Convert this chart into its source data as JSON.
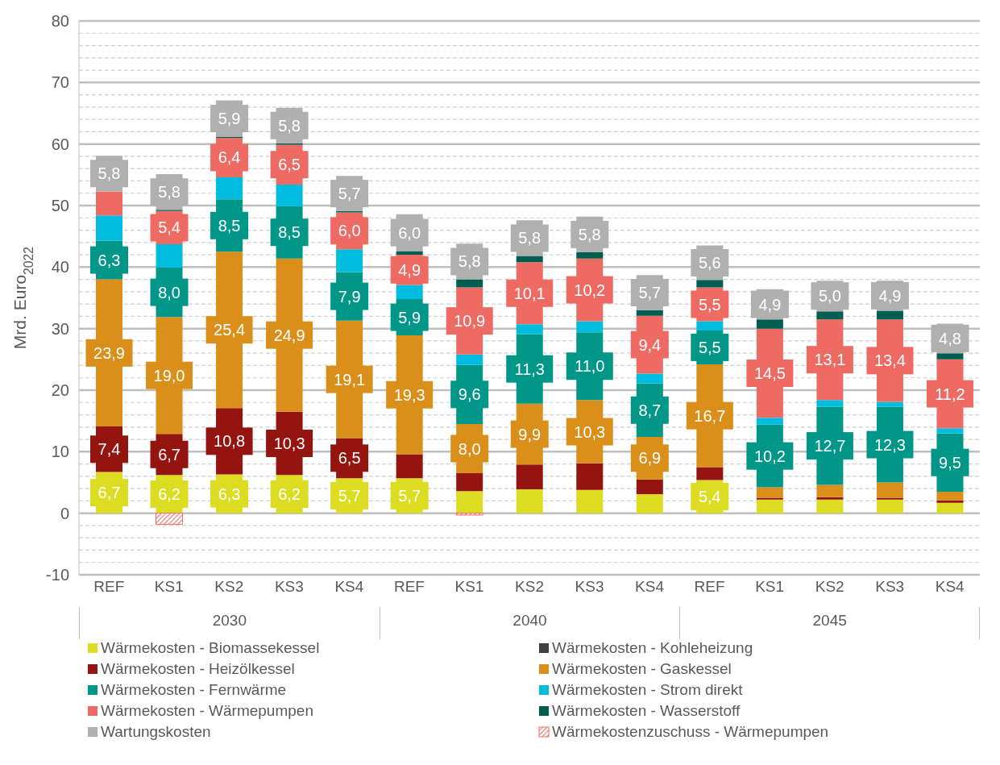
{
  "chart_data": {
    "type": "bar",
    "stacked": true,
    "ylabel": "Mrd. Euro$_{2022}$",
    "categories": [
      "REF",
      "KS1",
      "KS2",
      "KS3",
      "KS4",
      "REF",
      "KS1",
      "KS2",
      "KS3",
      "KS4",
      "REF",
      "KS1",
      "KS2",
      "KS3",
      "KS4"
    ],
    "annotations": [
      "2030",
      "2040",
      "2045"
    ],
    "ylim": [
      -10,
      80
    ],
    "yticks": [
      -10,
      {
        "value": -8,
        "label": null
      },
      {
        "value": -6,
        "label": null
      },
      {
        "value": -4,
        "label": null
      },
      {
        "value": -2,
        "label": null
      },
      0,
      {
        "value": 2,
        "label": null
      },
      {
        "value": 4,
        "label": null
      },
      {
        "value": 6,
        "label": null
      },
      {
        "value": 8,
        "label": null
      },
      10,
      {
        "value": 12,
        "label": null
      },
      {
        "value": 14,
        "label": null
      },
      {
        "value": 16,
        "label": null
      },
      {
        "value": 18,
        "label": null
      },
      20,
      {
        "value": 22,
        "label": null
      },
      {
        "value": 24,
        "label": null
      },
      {
        "value": 26,
        "label": null
      },
      {
        "value": 28,
        "label": null
      },
      30,
      {
        "value": 32,
        "label": null
      },
      {
        "value": 34,
        "label": null
      },
      {
        "value": 36,
        "label": null
      },
      {
        "value": 38,
        "label": null
      },
      40,
      {
        "value": 42,
        "label": null
      },
      {
        "value": 44,
        "label": null
      },
      {
        "value": 46,
        "label": null
      },
      {
        "value": 48,
        "label": null
      },
      50,
      {
        "value": 52,
        "label": null
      },
      {
        "value": 54,
        "label": null
      },
      {
        "value": 56,
        "label": null
      },
      {
        "value": 58,
        "label": null
      },
      60,
      {
        "value": 62,
        "label": null
      },
      {
        "value": 64,
        "label": null
      },
      {
        "value": 66,
        "label": null
      },
      {
        "value": 68,
        "label": null
      },
      70,
      {
        "value": 72,
        "label": null
      },
      {
        "value": 74,
        "label": null
      },
      {
        "value": 76,
        "label": null
      },
      {
        "value": 78,
        "label": null
      },
      80
    ],
    "grid": "y",
    "legend": "bottom",
    "series": [
      {
        "name": "Wärmekosten - Biomassekessel",
        "color": "#dcdc23",
        "values": [
          6.7,
          6.2,
          6.3,
          6.2,
          5.7,
          5.7,
          3.6,
          3.9,
          3.8,
          3.1,
          5.4,
          2.2,
          2.2,
          2.2,
          1.7
        ],
        "value_labels": [
          "6,7",
          "6,2",
          "6,3",
          "6,2",
          "5,7",
          "5,7",
          null,
          null,
          null,
          null,
          "5,4",
          null,
          null,
          null,
          null
        ]
      },
      {
        "name": "Wärmekosten - Kohleheizung",
        "color": "#404040",
        "values": [
          0,
          0,
          0,
          0,
          0,
          0,
          0,
          0,
          0,
          0,
          0,
          0,
          0,
          0,
          0
        ]
      },
      {
        "name": "Wärmekosten - Heizölkessel",
        "color": "#94140f",
        "values": [
          7.4,
          6.7,
          10.8,
          10.3,
          6.5,
          3.9,
          2.9,
          4.0,
          4.3,
          2.4,
          2.1,
          0.3,
          0.4,
          0.3,
          0.4
        ],
        "value_labels": [
          "7,4",
          "6,7",
          "10,8",
          "10,3",
          "6,5",
          null,
          null,
          null,
          null,
          null,
          null,
          null,
          null,
          null,
          null
        ]
      },
      {
        "name": "Wärmekosten - Gaskessel",
        "color": "#d98f1a",
        "values": [
          23.9,
          19.0,
          25.4,
          24.9,
          19.1,
          19.3,
          8.0,
          9.9,
          10.3,
          6.9,
          16.7,
          1.7,
          2.0,
          2.5,
          1.4
        ],
        "value_labels": [
          "23,9",
          "19,0",
          "25,4",
          "24,9",
          "19,1",
          "19,3",
          "8,0",
          "9,9",
          "10,3",
          "6,9",
          "16,7",
          null,
          null,
          null,
          null
        ]
      },
      {
        "name": "Wärmekosten - Fernwärme",
        "color": "#009688",
        "values": [
          6.3,
          8.0,
          8.5,
          8.5,
          7.9,
          5.9,
          9.6,
          11.3,
          11.0,
          8.7,
          5.5,
          10.2,
          12.7,
          12.3,
          9.5
        ],
        "value_labels": [
          "6,3",
          "8,0",
          "8,5",
          "8,5",
          "7,9",
          "5,9",
          "9,6",
          "11,3",
          "11,0",
          "8,7",
          "5,5",
          "10,2",
          "12,7",
          "12,3",
          "9,5"
        ]
      },
      {
        "name": "Wärmekosten - Strom direkt",
        "color": "#00bde0",
        "values": [
          4.1,
          3.8,
          3.6,
          3.5,
          3.7,
          2.3,
          1.7,
          1.6,
          1.8,
          1.6,
          1.5,
          1.1,
          1.1,
          0.8,
          0.8
        ]
      },
      {
        "name": "Wärmekosten - Wärmepumpen",
        "color": "#ee6b64",
        "values": [
          3.9,
          5.4,
          6.4,
          6.5,
          6.0,
          4.9,
          10.9,
          10.1,
          10.2,
          9.4,
          5.5,
          14.5,
          13.1,
          13.4,
          11.2
        ],
        "value_labels": [
          null,
          "5,4",
          "6,4",
          "6,5",
          "6,0",
          "4,9",
          "10,9",
          "10,1",
          "10,2",
          "9,4",
          "5,5",
          "14,5",
          "13,1",
          "13,4",
          "11,2"
        ]
      },
      {
        "name": "Wärmekosten - Wasserstoff",
        "color": "#005e50",
        "values": [
          null,
          0.2,
          0.2,
          0.2,
          0.2,
          0.6,
          1.3,
          1.0,
          1.0,
          0.9,
          1.2,
          1.5,
          1.3,
          1.4,
          1.0
        ]
      },
      {
        "name": "Wartungskosten",
        "color": "#b0b0b0",
        "values": [
          5.8,
          5.8,
          5.9,
          5.8,
          5.7,
          6.0,
          5.8,
          5.8,
          5.8,
          5.7,
          5.6,
          4.9,
          5.0,
          4.9,
          4.8
        ],
        "value_labels": [
          "5,8",
          "5,8",
          "5,9",
          "5,8",
          "5,7",
          "6,0",
          "5,8",
          "5,8",
          "5,8",
          "5,7",
          "5,6",
          "4,9",
          "5,0",
          "4,9",
          "4,8"
        ]
      },
      {
        "name": "Wärmekostenzuschuss - Wärmepumpen",
        "color": "#ee6b64",
        "values": [
          0,
          -1.8,
          0,
          0,
          0,
          0,
          -0.3,
          0,
          0,
          0,
          0,
          0,
          0,
          0,
          0
        ]
      }
    ]
  }
}
